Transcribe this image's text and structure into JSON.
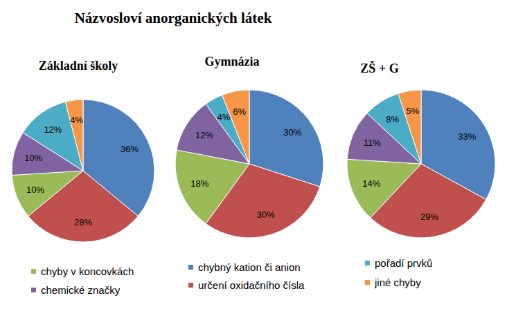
{
  "title": "Názvosloví anorganických látek",
  "chart_data": [
    {
      "type": "pie",
      "title": "Základní školy",
      "categories": [
        "chybný kation či anion",
        "určení oxidačního čísla",
        "chyby v koncovkách",
        "chemické značky",
        "pořadí prvků",
        "jiné chyby"
      ],
      "values": [
        36,
        28,
        10,
        10,
        12,
        4
      ],
      "value_labels": [
        "36%",
        "28%",
        "10%",
        "10%",
        "12%",
        "4%"
      ],
      "colors": [
        "#4F81BD",
        "#C0504D",
        "#9BBB59",
        "#8064A2",
        "#4BACC6",
        "#F79646"
      ],
      "data_labels": true,
      "legend": "bottom"
    },
    {
      "type": "pie",
      "title": "Gymnázia",
      "categories": [
        "chybný kation či anion",
        "určení oxidačního čísla",
        "chyby v koncovkách",
        "chemické značky",
        "pořadí prvků",
        "jiné chyby"
      ],
      "values": [
        30,
        30,
        18,
        12,
        4,
        6
      ],
      "value_labels": [
        "30%",
        "30%",
        "18%",
        "12%",
        "4%",
        "6%"
      ],
      "colors": [
        "#4F81BD",
        "#C0504D",
        "#9BBB59",
        "#8064A2",
        "#4BACC6",
        "#F79646"
      ],
      "data_labels": true
    },
    {
      "type": "pie",
      "title": "ZŠ + G",
      "categories": [
        "chybný kation či anion",
        "určení oxidačního čísla",
        "chyby v koncovkách",
        "chemické značky",
        "pořadí prvků",
        "jiné chyby"
      ],
      "values": [
        33,
        29,
        14,
        11,
        8,
        5
      ],
      "value_labels": [
        "33%",
        "29%",
        "14%",
        "11%",
        "8%",
        "5%"
      ],
      "colors": [
        "#4F81BD",
        "#C0504D",
        "#9BBB59",
        "#8064A2",
        "#4BACC6",
        "#F79646"
      ],
      "data_labels": true
    }
  ]
}
